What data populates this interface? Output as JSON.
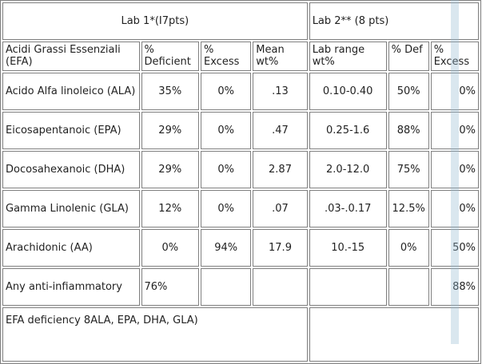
{
  "headers": {
    "lab1": "Lab 1*(I7pts)",
    "lab2": "Lab 2** (8 pts)"
  },
  "columns": [
    "Acidi Grassi Essenziali (EFA)",
    "% Deficient",
    "% Excess",
    "Mean wt%",
    "Lab range wt%",
    "% Def",
    "% Excess"
  ],
  "rows": [
    {
      "name": "Acido Alfa linoleico (ALA)",
      "deficient": "35%",
      "excess": "0%",
      "mean": ".13",
      "range": "0.10-0.40",
      "def2": "50%",
      "excess2": "0%"
    },
    {
      "name": "Eicosapentanoic (EPA)",
      "deficient": "29%",
      "excess": "0%",
      "mean": ".47",
      "range": "0.25-1.6",
      "def2": "88%",
      "excess2": "0%"
    },
    {
      "name": "Docosahexanoic (DHA)",
      "deficient": "29%",
      "excess": "0%",
      "mean": "2.87",
      "range": "2.0-12.0",
      "def2": "75%",
      "excess2": "0%"
    },
    {
      "name": "Gamma Linolenic (GLA)",
      "deficient": "12%",
      "excess": "0%",
      "mean": ".07",
      "range": ".03-.0.17",
      "def2": "12.5%",
      "excess2": "0%"
    },
    {
      "name": "Arachidonic (AA)",
      "deficient": "0%",
      "excess": "94%",
      "mean": "17.9",
      "range": "10.-15",
      "def2": "0%",
      "excess2": "50%"
    },
    {
      "name": "Any anti-infiammatory",
      "deficient": "76%",
      "excess": "",
      "mean": "",
      "range": "",
      "def2": "",
      "excess2": "88%"
    }
  ],
  "footer": "EFA deficiency 8ALA, EPA, DHA, GLA)"
}
